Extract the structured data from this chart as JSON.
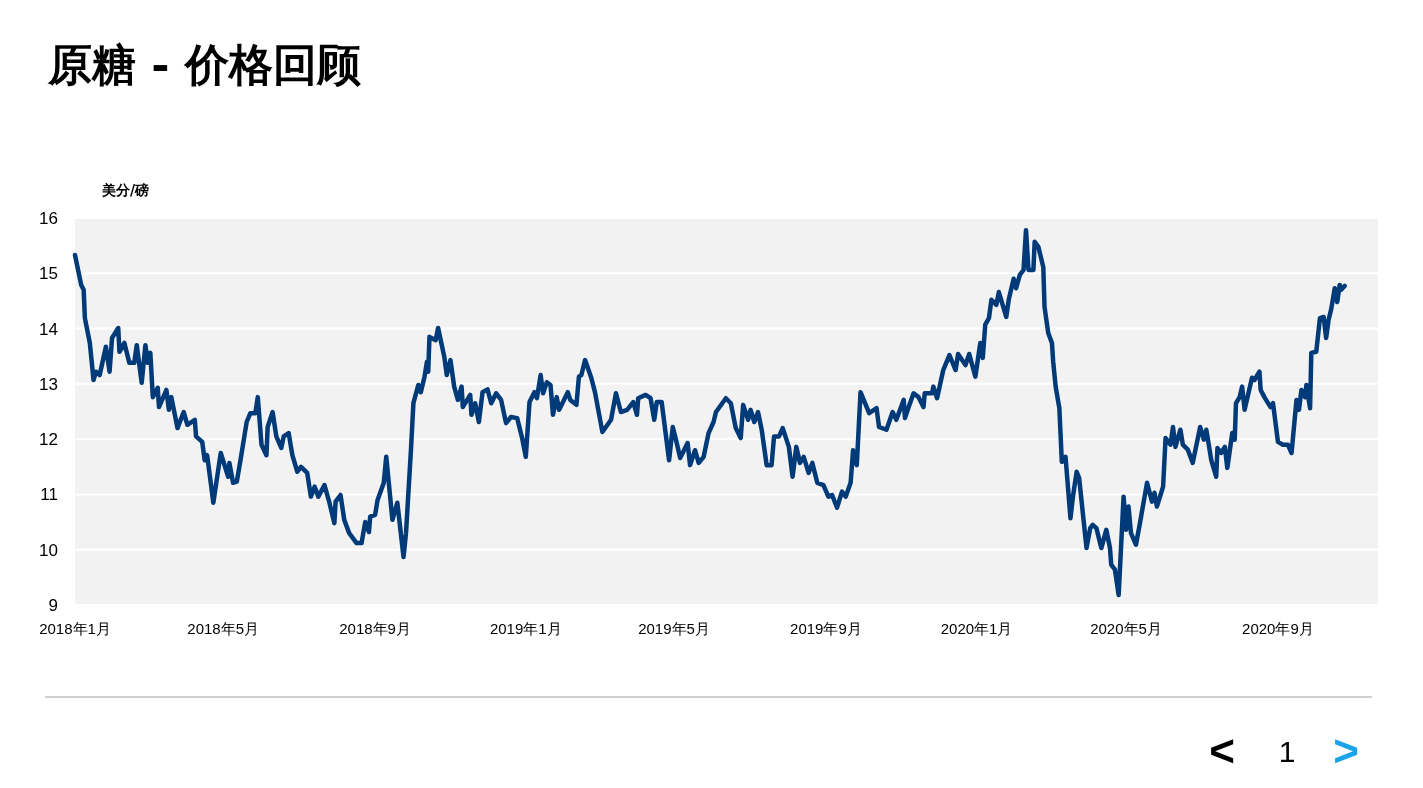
{
  "chart_data": {
    "type": "line",
    "title": "原糖 - 价格回顾",
    "ylabel": "美分/磅",
    "x": [
      "2018-01-01",
      "2018-01-06",
      "2018-01-08",
      "2018-01-09",
      "2018-01-13",
      "2018-01-16",
      "2018-01-18",
      "2018-01-21",
      "2018-01-26",
      "2018-01-29",
      "2018-01-31",
      "2018-02-05",
      "2018-02-06",
      "2018-02-10",
      "2018-02-14",
      "2018-02-18",
      "2018-02-20",
      "2018-02-24",
      "2018-02-27",
      "2018-03-01",
      "2018-03-03",
      "2018-03-05",
      "2018-03-09",
      "2018-03-10",
      "2018-03-16",
      "2018-03-18",
      "2018-03-20",
      "2018-03-25",
      "2018-03-30",
      "2018-04-02",
      "2018-04-08",
      "2018-04-09",
      "2018-04-14",
      "2018-04-16",
      "2018-04-18",
      "2018-04-23",
      "2018-04-29",
      "2018-05-05",
      "2018-05-06",
      "2018-05-09",
      "2018-05-12",
      "2018-05-15",
      "2018-05-20",
      "2018-05-23",
      "2018-05-27",
      "2018-05-29",
      "2018-06-01",
      "2018-06-05",
      "2018-06-06",
      "2018-06-10",
      "2018-06-13",
      "2018-06-17",
      "2018-06-19",
      "2018-06-23",
      "2018-06-26",
      "2018-06-30",
      "2018-07-03",
      "2018-07-08",
      "2018-07-11",
      "2018-07-14",
      "2018-07-17",
      "2018-07-22",
      "2018-07-26",
      "2018-07-30",
      "2018-07-31",
      "2018-08-04",
      "2018-08-07",
      "2018-08-11",
      "2018-08-17",
      "2018-08-21",
      "2018-08-24",
      "2018-08-27",
      "2018-08-28",
      "2018-09-01",
      "2018-09-03",
      "2018-09-08",
      "2018-09-10",
      "2018-09-15",
      "2018-09-19",
      "2018-09-24",
      "2018-09-26",
      "2018-09-30",
      "2018-10-02",
      "2018-10-06",
      "2018-10-08",
      "2018-10-11",
      "2018-10-13",
      "2018-10-14",
      "2018-10-15",
      "2018-10-20",
      "2018-10-22",
      "2018-10-27",
      "2018-10-29",
      "2018-11-01",
      "2018-11-04",
      "2018-11-07",
      "2018-11-10",
      "2018-11-11",
      "2018-11-17",
      "2018-11-18",
      "2018-11-21",
      "2018-11-24",
      "2018-11-27",
      "2018-12-01",
      "2018-12-04",
      "2018-12-08",
      "2018-12-12",
      "2018-12-16",
      "2018-12-20",
      "2018-12-25",
      "2018-12-29",
      "2019-01-01",
      "2019-01-04",
      "2019-01-08",
      "2019-01-10",
      "2019-01-13",
      "2019-01-15",
      "2019-01-18",
      "2019-01-21",
      "2019-01-23",
      "2019-01-26",
      "2019-01-28",
      "2019-02-04",
      "2019-02-06",
      "2019-02-11",
      "2019-02-13",
      "2019-02-15",
      "2019-02-18",
      "2019-02-23",
      "2019-02-26",
      "2019-03-04",
      "2019-03-11",
      "2019-03-15",
      "2019-03-19",
      "2019-03-24",
      "2019-03-29",
      "2019-04-01",
      "2019-04-02",
      "2019-04-08",
      "2019-04-12",
      "2019-04-15",
      "2019-04-17",
      "2019-04-21",
      "2019-04-27",
      "2019-04-30",
      "2019-05-03",
      "2019-05-06",
      "2019-05-12",
      "2019-05-14",
      "2019-05-18",
      "2019-05-21",
      "2019-05-25",
      "2019-05-29",
      "2019-06-02",
      "2019-06-04",
      "2019-06-12",
      "2019-06-16",
      "2019-06-20",
      "2019-06-24",
      "2019-06-26",
      "2019-06-30",
      "2019-07-02",
      "2019-07-05",
      "2019-07-08",
      "2019-07-11",
      "2019-07-15",
      "2019-07-19",
      "2019-07-21",
      "2019-07-25",
      "2019-07-28",
      "2019-08-02",
      "2019-08-05",
      "2019-08-08",
      "2019-08-11",
      "2019-08-14",
      "2019-08-18",
      "2019-08-21",
      "2019-08-25",
      "2019-08-30",
      "2019-09-03",
      "2019-09-06",
      "2019-09-10",
      "2019-09-14",
      "2019-09-17",
      "2019-09-21",
      "2019-09-23",
      "2019-09-26",
      "2019-09-29",
      "2019-10-06",
      "2019-10-12",
      "2019-10-14",
      "2019-10-20",
      "2019-10-25",
      "2019-10-28",
      "2019-11-03",
      "2019-11-04",
      "2019-11-07",
      "2019-11-11",
      "2019-11-15",
      "2019-11-19",
      "2019-11-20",
      "2019-11-26",
      "2019-11-27",
      "2019-11-30",
      "2019-12-05",
      "2019-12-10",
      "2019-12-15",
      "2019-12-17",
      "2019-12-23",
      "2019-12-26",
      "2019-12-31",
      "2020-01-04",
      "2020-01-06",
      "2020-01-08",
      "2020-01-11",
      "2020-01-13",
      "2020-01-17",
      "2020-01-19",
      "2020-01-25",
      "2020-01-27",
      "2020-01-31",
      "2020-02-02",
      "2020-02-05",
      "2020-02-08",
      "2020-02-10",
      "2020-02-12",
      "2020-02-16",
      "2020-02-17",
      "2020-02-20",
      "2020-02-24",
      "2020-02-25",
      "2020-02-28",
      "2020-03-02",
      "2020-03-03",
      "2020-03-05",
      "2020-03-08",
      "2020-03-10",
      "2020-03-13",
      "2020-03-17",
      "2020-03-19",
      "2020-03-22",
      "2020-03-24",
      "2020-03-30",
      "2020-04-02",
      "2020-04-04",
      "2020-04-07",
      "2020-04-11",
      "2020-04-15",
      "2020-04-18",
      "2020-04-19",
      "2020-04-22",
      "2020-04-25",
      "2020-04-29",
      "2020-05-01",
      "2020-05-03",
      "2020-05-05",
      "2020-05-09",
      "2020-05-12",
      "2020-05-18",
      "2020-05-22",
      "2020-05-24",
      "2020-05-26",
      "2020-05-31",
      "2020-06-02",
      "2020-06-06",
      "2020-06-08",
      "2020-06-10",
      "2020-06-14",
      "2020-06-16",
      "2020-06-20",
      "2020-06-24",
      "2020-06-30",
      "2020-07-03",
      "2020-07-05",
      "2020-07-09",
      "2020-07-13",
      "2020-07-14",
      "2020-07-17",
      "2020-07-20",
      "2020-07-22",
      "2020-07-26",
      "2020-07-28",
      "2020-07-29",
      "2020-08-01",
      "2020-08-03",
      "2020-08-05",
      "2020-08-11",
      "2020-08-13",
      "2020-08-17",
      "2020-08-18",
      "2020-08-21",
      "2020-08-26",
      "2020-08-28",
      "2020-09-01",
      "2020-09-05",
      "2020-09-09",
      "2020-09-12",
      "2020-09-16",
      "2020-09-18",
      "2020-09-20",
      "2020-09-23",
      "2020-09-24",
      "2020-09-27",
      "2020-09-28",
      "2020-10-02",
      "2020-10-05",
      "2020-10-08",
      "2020-10-10",
      "2020-10-12",
      "2020-10-14",
      "2020-10-17",
      "2020-10-19",
      "2020-10-21",
      "2020-10-22",
      "2020-10-25"
    ],
    "series": [
      {
        "color": "#003a78",
        "values": [
          15.33,
          14.79,
          14.7,
          14.19,
          13.74,
          13.07,
          13.22,
          13.16,
          13.67,
          13.22,
          13.83,
          14.01,
          13.58,
          13.74,
          13.38,
          13.38,
          13.7,
          13.02,
          13.7,
          13.38,
          13.56,
          12.76,
          12.93,
          12.58,
          12.89,
          12.53,
          12.76,
          12.2,
          12.49,
          12.26,
          12.35,
          12.05,
          11.95,
          11.62,
          11.71,
          10.85,
          11.75,
          11.32,
          11.57,
          11.21,
          11.23,
          11.62,
          12.31,
          12.47,
          12.47,
          12.76,
          11.9,
          11.71,
          12.22,
          12.49,
          12.05,
          11.84,
          12.05,
          12.11,
          11.71,
          11.41,
          11.5,
          11.39,
          10.96,
          11.14,
          10.96,
          11.17,
          10.85,
          10.48,
          10.87,
          10.99,
          10.54,
          10.3,
          10.12,
          10.12,
          10.5,
          10.32,
          10.6,
          10.63,
          10.9,
          11.21,
          11.68,
          10.54,
          10.85,
          9.87,
          10.3,
          11.8,
          12.65,
          12.98,
          12.85,
          13.13,
          13.4,
          13.22,
          13.85,
          13.79,
          14.01,
          13.49,
          13.16,
          13.43,
          12.95,
          12.71,
          12.95,
          12.58,
          12.8,
          12.44,
          12.65,
          12.31,
          12.85,
          12.9,
          12.65,
          12.83,
          12.71,
          12.29,
          12.4,
          12.38,
          12.02,
          11.68,
          12.67,
          12.85,
          12.74,
          13.16,
          12.83,
          13.03,
          12.98,
          12.44,
          12.76,
          12.53,
          12.85,
          12.71,
          12.62,
          13.13,
          13.16,
          13.43,
          13.11,
          12.85,
          12.13,
          12.35,
          12.83,
          12.49,
          12.53,
          12.67,
          12.44,
          12.74,
          12.8,
          12.74,
          12.35,
          12.67,
          12.67,
          11.62,
          12.22,
          11.95,
          11.66,
          11.93,
          11.53,
          11.8,
          11.57,
          11.68,
          12.11,
          12.31,
          12.49,
          12.74,
          12.65,
          12.2,
          12.02,
          12.62,
          12.35,
          12.53,
          12.31,
          12.49,
          12.17,
          11.53,
          11.53,
          12.05,
          12.05,
          12.2,
          11.86,
          11.32,
          11.86,
          11.57,
          11.68,
          11.39,
          11.57,
          11.21,
          11.17,
          10.96,
          10.99,
          10.76,
          11.05,
          10.96,
          11.21,
          11.8,
          11.53,
          12.85,
          12.47,
          12.56,
          12.22,
          12.17,
          12.49,
          12.35,
          12.71,
          12.38,
          12.58,
          12.83,
          12.76,
          12.58,
          12.83,
          12.83,
          12.95,
          12.74,
          13.25,
          13.52,
          13.25,
          13.54,
          13.34,
          13.54,
          13.13,
          13.74,
          13.47,
          14.07,
          14.19,
          14.52,
          14.43,
          14.66,
          14.21,
          14.52,
          14.9,
          14.73,
          14.97,
          15.06,
          15.78,
          15.06,
          15.06,
          15.57,
          15.48,
          15.11,
          14.39,
          13.92,
          13.74,
          13.4,
          12.95,
          12.56,
          11.59,
          11.68,
          10.57,
          10.96,
          11.41,
          11.3,
          10.03,
          10.39,
          10.45,
          10.39,
          10.03,
          10.36,
          10.03,
          9.73,
          9.64,
          9.18,
          10.96,
          10.36,
          10.78,
          10.3,
          10.09,
          10.45,
          11.21,
          10.87,
          11.03,
          10.78,
          11.14,
          12.02,
          11.9,
          12.22,
          11.86,
          12.17,
          11.9,
          11.81,
          11.57,
          12.22,
          11.99,
          12.17,
          11.62,
          11.32,
          11.84,
          11.75,
          11.86,
          11.48,
          12.11,
          11.99,
          12.65,
          12.76,
          12.95,
          12.53,
          13.11,
          13.07,
          13.22,
          12.89,
          12.76,
          12.58,
          12.65,
          11.95,
          11.9,
          11.9,
          11.75,
          12.71,
          12.53,
          12.89,
          12.76,
          12.98,
          12.56,
          13.56,
          13.58,
          14.19,
          14.21,
          13.83,
          14.16,
          14.34,
          14.73,
          14.48,
          14.79,
          14.7,
          14.77
        ]
      }
    ],
    "xlim": [
      "2018-01-01",
      "2020-11-21"
    ],
    "xticks": [
      {
        "value": "2018-01-01",
        "label": "2018年1月"
      },
      {
        "value": "2018-05-01",
        "label": "2018年5月"
      },
      {
        "value": "2018-09-01",
        "label": "2018年9月"
      },
      {
        "value": "2019-01-01",
        "label": "2019年1月"
      },
      {
        "value": "2019-05-01",
        "label": "2019年5月"
      },
      {
        "value": "2019-09-01",
        "label": "2019年9月"
      },
      {
        "value": "2020-01-01",
        "label": "2020年1月"
      },
      {
        "value": "2020-05-01",
        "label": "2020年5月"
      },
      {
        "value": "2020-09-01",
        "label": "2020年9月"
      }
    ],
    "ylim": [
      9,
      16
    ],
    "yticks": [
      9,
      10,
      11,
      12,
      13,
      14,
      15,
      16
    ],
    "grid": "y",
    "line_style": "solid",
    "marker": "none",
    "annotations": [
      "<",
      "1",
      ">"
    ]
  }
}
